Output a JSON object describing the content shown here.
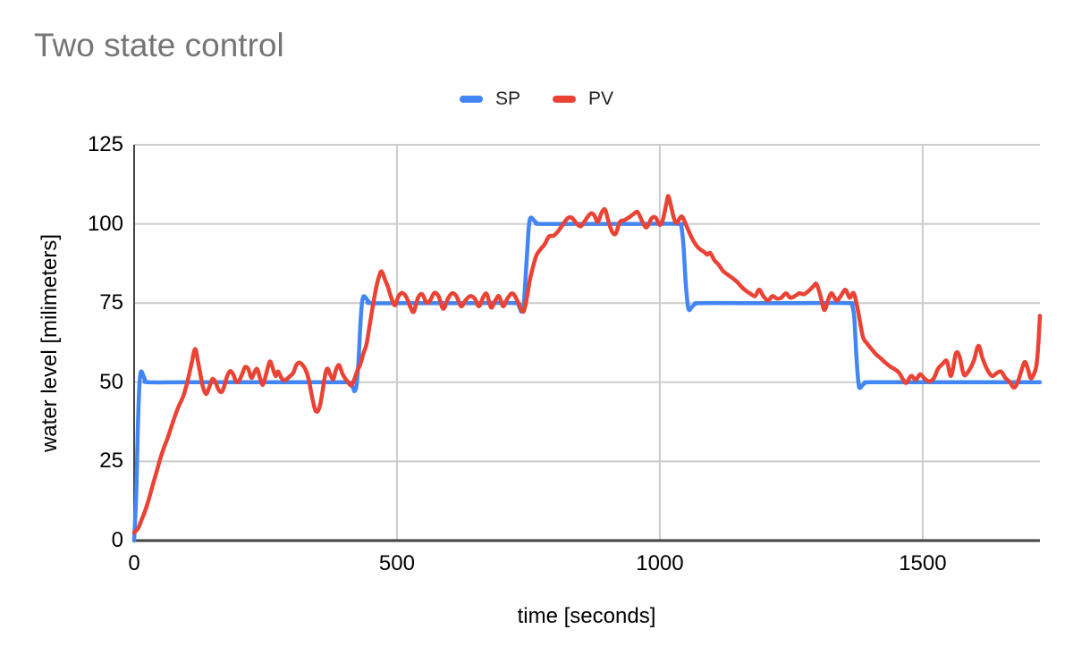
{
  "chart_data": {
    "type": "line",
    "title": "Two state control",
    "xlabel": "time [seconds]",
    "ylabel": "water level [milimeters]",
    "xlim": [
      0,
      1723
    ],
    "ylim": [
      0,
      125
    ],
    "x_ticks": [
      "0",
      "500",
      "1000",
      "1500"
    ],
    "x_tick_values": [
      0,
      500,
      1000,
      1500
    ],
    "y_ticks": [
      "0",
      "25",
      "50",
      "75",
      "100",
      "125"
    ],
    "y_tick_values": [
      0,
      25,
      50,
      75,
      100,
      125
    ],
    "grid": true,
    "legend_position": "top-center",
    "colors": {
      "title_text": "#757575",
      "axis_line": "#424242",
      "gridline": "#cccccc",
      "tick_text": "#000000",
      "legend_text": "#212121",
      "background": "#ffffff"
    },
    "series": [
      {
        "name": "SP",
        "color": "#4285f4",
        "points": [
          [
            0,
            0
          ],
          [
            4,
            15
          ],
          [
            7,
            35
          ],
          [
            10,
            49
          ],
          [
            13,
            53.3
          ],
          [
            17,
            52.3
          ],
          [
            21,
            50.7
          ],
          [
            27,
            50
          ],
          [
            100,
            50
          ],
          [
            200,
            50
          ],
          [
            300,
            50
          ],
          [
            400,
            50
          ],
          [
            410,
            49.6
          ],
          [
            416,
            48.4
          ],
          [
            419,
            47.2
          ],
          [
            423,
            49
          ],
          [
            427,
            57
          ],
          [
            430,
            67
          ],
          [
            433,
            74.5
          ],
          [
            436,
            77
          ],
          [
            440,
            76.8
          ],
          [
            446,
            75.5
          ],
          [
            453,
            75
          ],
          [
            550,
            75
          ],
          [
            650,
            75
          ],
          [
            725,
            75
          ],
          [
            732,
            74
          ],
          [
            737,
            72.3
          ],
          [
            741,
            74.5
          ],
          [
            745,
            84
          ],
          [
            749,
            95
          ],
          [
            752,
            100.8
          ],
          [
            755,
            102
          ],
          [
            759,
            101.4
          ],
          [
            765,
            100.4
          ],
          [
            772,
            100
          ],
          [
            850,
            100
          ],
          [
            950,
            100
          ],
          [
            1035,
            100
          ],
          [
            1041,
            99
          ],
          [
            1045,
            93
          ],
          [
            1049,
            82
          ],
          [
            1053,
            74.5
          ],
          [
            1056,
            72.8
          ],
          [
            1060,
            73.6
          ],
          [
            1067,
            74.7
          ],
          [
            1075,
            75
          ],
          [
            1150,
            75
          ],
          [
            1250,
            75
          ],
          [
            1360,
            75
          ],
          [
            1366,
            74.2
          ],
          [
            1370,
            70
          ],
          [
            1374,
            58
          ],
          [
            1378,
            49.5
          ],
          [
            1381,
            48.2
          ],
          [
            1385,
            49
          ],
          [
            1391,
            49.8
          ],
          [
            1400,
            50
          ],
          [
            1500,
            50
          ],
          [
            1600,
            50
          ],
          [
            1723,
            50
          ]
        ]
      },
      {
        "name": "PV",
        "color": "#ea4335",
        "points": [
          [
            0,
            2.5
          ],
          [
            8,
            4
          ],
          [
            14,
            6.5
          ],
          [
            20,
            9
          ],
          [
            26,
            12
          ],
          [
            32,
            15.5
          ],
          [
            38,
            19
          ],
          [
            44,
            22.5
          ],
          [
            50,
            26
          ],
          [
            57,
            29.5
          ],
          [
            64,
            32.5
          ],
          [
            71,
            36
          ],
          [
            78,
            39.5
          ],
          [
            85,
            42.5
          ],
          [
            92,
            45
          ],
          [
            98,
            48
          ],
          [
            104,
            52
          ],
          [
            110,
            56.5
          ],
          [
            116,
            60.5
          ],
          [
            121,
            57
          ],
          [
            126,
            52.5
          ],
          [
            131,
            48.5
          ],
          [
            137,
            46.3
          ],
          [
            143,
            48.5
          ],
          [
            149,
            51
          ],
          [
            155,
            50
          ],
          [
            160,
            47.8
          ],
          [
            166,
            46.9
          ],
          [
            171,
            48.5
          ],
          [
            177,
            52
          ],
          [
            183,
            53.5
          ],
          [
            189,
            52.3
          ],
          [
            194,
            50.2
          ],
          [
            200,
            50.6
          ],
          [
            206,
            52.8
          ],
          [
            211,
            54.8
          ],
          [
            217,
            54.2
          ],
          [
            223,
            51.4
          ],
          [
            228,
            52.8
          ],
          [
            234,
            54.2
          ],
          [
            240,
            51
          ],
          [
            245,
            49.2
          ],
          [
            251,
            52.5
          ],
          [
            258,
            56.5
          ],
          [
            263,
            54.8
          ],
          [
            269,
            52
          ],
          [
            274,
            53.4
          ],
          [
            280,
            51.4
          ],
          [
            286,
            50.6
          ],
          [
            291,
            51.1
          ],
          [
            297,
            52
          ],
          [
            303,
            53
          ],
          [
            308,
            55.3
          ],
          [
            314,
            56.2
          ],
          [
            320,
            55.5
          ],
          [
            326,
            54
          ],
          [
            332,
            51
          ],
          [
            338,
            45.8
          ],
          [
            344,
            41.5
          ],
          [
            349,
            40.8
          ],
          [
            354,
            43
          ],
          [
            359,
            47.8
          ],
          [
            364,
            52.8
          ],
          [
            368,
            54.3
          ],
          [
            373,
            52.4
          ],
          [
            379,
            51
          ],
          [
            384,
            54
          ],
          [
            390,
            55.4
          ],
          [
            396,
            52.8
          ],
          [
            401,
            51.3
          ],
          [
            407,
            50
          ],
          [
            413,
            49
          ],
          [
            419,
            51
          ],
          [
            424,
            53.4
          ],
          [
            430,
            55.6
          ],
          [
            436,
            59
          ],
          [
            442,
            62
          ],
          [
            448,
            68
          ],
          [
            454,
            74
          ],
          [
            460,
            79.5
          ],
          [
            466,
            83.5
          ],
          [
            471,
            85
          ],
          [
            477,
            82.5
          ],
          [
            483,
            80
          ],
          [
            489,
            76.8
          ],
          [
            496,
            74.3
          ],
          [
            503,
            77.2
          ],
          [
            511,
            78.2
          ],
          [
            519,
            76.5
          ],
          [
            526,
            73.5
          ],
          [
            532,
            72.3
          ],
          [
            540,
            76.7
          ],
          [
            548,
            77.8
          ],
          [
            556,
            75.2
          ],
          [
            563,
            75.8
          ],
          [
            571,
            78.2
          ],
          [
            579,
            77.2
          ],
          [
            588,
            73.2
          ],
          [
            597,
            76.4
          ],
          [
            605,
            78.1
          ],
          [
            613,
            77.2
          ],
          [
            622,
            74
          ],
          [
            630,
            75.8
          ],
          [
            639,
            77.2
          ],
          [
            648,
            76.4
          ],
          [
            656,
            74
          ],
          [
            665,
            77.2
          ],
          [
            671,
            77.8
          ],
          [
            679,
            73.6
          ],
          [
            687,
            75.8
          ],
          [
            694,
            77.2
          ],
          [
            702,
            74
          ],
          [
            710,
            76.4
          ],
          [
            719,
            78.1
          ],
          [
            727,
            76.4
          ],
          [
            735,
            73.5
          ],
          [
            741,
            72.4
          ],
          [
            747,
            76.7
          ],
          [
            753,
            82.5
          ],
          [
            759,
            86.5
          ],
          [
            765,
            90
          ],
          [
            773,
            92
          ],
          [
            781,
            93.6
          ],
          [
            789,
            96
          ],
          [
            798,
            96.3
          ],
          [
            807,
            97.8
          ],
          [
            815,
            99.7
          ],
          [
            824,
            101.7
          ],
          [
            832,
            102
          ],
          [
            841,
            100.3
          ],
          [
            849,
            99.2
          ],
          [
            856,
            100.6
          ],
          [
            864,
            102.5
          ],
          [
            870,
            103.4
          ],
          [
            876,
            102.5
          ],
          [
            882,
            100.6
          ],
          [
            890,
            103.8
          ],
          [
            896,
            104.5
          ],
          [
            902,
            101
          ],
          [
            909,
            97.6
          ],
          [
            916,
            96.9
          ],
          [
            924,
            100.6
          ],
          [
            933,
            101.2
          ],
          [
            941,
            102
          ],
          [
            950,
            103.1
          ],
          [
            958,
            103.7
          ],
          [
            967,
            100.6
          ],
          [
            975,
            98.9
          ],
          [
            984,
            101.7
          ],
          [
            992,
            102
          ],
          [
            1000,
            99.7
          ],
          [
            1006,
            101.5
          ],
          [
            1012,
            106
          ],
          [
            1016,
            108.8
          ],
          [
            1021,
            105.8
          ],
          [
            1027,
            101.7
          ],
          [
            1032,
            100.3
          ],
          [
            1038,
            101.8
          ],
          [
            1043,
            102.2
          ],
          [
            1052,
            98.9
          ],
          [
            1061,
            95.5
          ],
          [
            1069,
            93.3
          ],
          [
            1077,
            91.9
          ],
          [
            1084,
            91.2
          ],
          [
            1090,
            90.3
          ],
          [
            1096,
            90.8
          ],
          [
            1104,
            88.5
          ],
          [
            1112,
            87.1
          ],
          [
            1120,
            85.2
          ],
          [
            1129,
            84
          ],
          [
            1138,
            82.9
          ],
          [
            1147,
            81.7
          ],
          [
            1155,
            80.2
          ],
          [
            1163,
            79
          ],
          [
            1172,
            78
          ],
          [
            1181,
            77.2
          ],
          [
            1189,
            79.2
          ],
          [
            1197,
            77.2
          ],
          [
            1206,
            75.8
          ],
          [
            1214,
            77.2
          ],
          [
            1223,
            76.4
          ],
          [
            1231,
            76.7
          ],
          [
            1240,
            78.1
          ],
          [
            1248,
            76.7
          ],
          [
            1257,
            77.2
          ],
          [
            1265,
            78.1
          ],
          [
            1274,
            77.8
          ],
          [
            1282,
            78.7
          ],
          [
            1291,
            80.1
          ],
          [
            1298,
            81
          ],
          [
            1306,
            77
          ],
          [
            1313,
            72.8
          ],
          [
            1321,
            76.4
          ],
          [
            1327,
            78.1
          ],
          [
            1336,
            75.8
          ],
          [
            1344,
            77.2
          ],
          [
            1353,
            79.2
          ],
          [
            1361,
            76.7
          ],
          [
            1369,
            78.1
          ],
          [
            1377,
            72.5
          ],
          [
            1386,
            64.5
          ],
          [
            1394,
            62.3
          ],
          [
            1403,
            60.4
          ],
          [
            1412,
            58.7
          ],
          [
            1420,
            57.6
          ],
          [
            1429,
            56.2
          ],
          [
            1438,
            55
          ],
          [
            1446,
            54.2
          ],
          [
            1455,
            53
          ],
          [
            1463,
            50.8
          ],
          [
            1469,
            49.8
          ],
          [
            1478,
            52
          ],
          [
            1487,
            50.8
          ],
          [
            1495,
            52.5
          ],
          [
            1504,
            51.1
          ],
          [
            1512,
            50.3
          ],
          [
            1521,
            51.2
          ],
          [
            1529,
            54.2
          ],
          [
            1538,
            55.8
          ],
          [
            1546,
            56.7
          ],
          [
            1554,
            52
          ],
          [
            1563,
            59
          ],
          [
            1570,
            58.2
          ],
          [
            1578,
            52.5
          ],
          [
            1586,
            53.2
          ],
          [
            1597,
            56.7
          ],
          [
            1606,
            61.5
          ],
          [
            1614,
            57.5
          ],
          [
            1623,
            53.9
          ],
          [
            1632,
            52
          ],
          [
            1640,
            52.8
          ],
          [
            1649,
            53.4
          ],
          [
            1657,
            51.4
          ],
          [
            1666,
            50
          ],
          [
            1674,
            48.3
          ],
          [
            1682,
            50.6
          ],
          [
            1693,
            56.2
          ],
          [
            1699,
            54.8
          ],
          [
            1705,
            51.4
          ],
          [
            1710,
            52
          ],
          [
            1716,
            55
          ],
          [
            1720,
            62
          ],
          [
            1723,
            71
          ]
        ]
      }
    ]
  }
}
